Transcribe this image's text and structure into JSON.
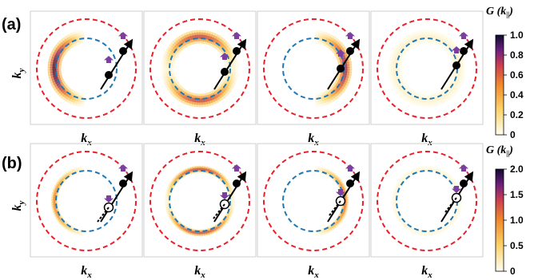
{
  "rows": [
    {
      "label": "(a)",
      "ylabel": "k",
      "ylabel_sub": "y",
      "xlabel": "k",
      "xlabel_sub": "x",
      "colorbar": {
        "title": "G (k",
        "title_sub": "||",
        "title_end": ")",
        "ticks": [
          "1.0",
          "0.8",
          "0.6",
          "0.4",
          "0.2",
          "0"
        ],
        "max": 1.0
      },
      "panels": [
        {
          "peak": 1.0,
          "spread": "left-crescent",
          "partner": "filled"
        },
        {
          "peak": 0.75,
          "spread": "top-bottom",
          "partner": "filled"
        },
        {
          "peak": 0.85,
          "spread": "right-crescent",
          "partner": "filled"
        },
        {
          "peak": 0.12,
          "spread": "faint",
          "partner": "filled"
        }
      ]
    },
    {
      "label": "(b)",
      "ylabel": "k",
      "ylabel_sub": "y",
      "xlabel": "k",
      "xlabel_sub": "x",
      "colorbar": {
        "title": "G (k",
        "title_sub": "||",
        "title_end": ")",
        "ticks": [
          "2.0",
          "1.5",
          "1.0",
          "0.5",
          "0"
        ],
        "max": 2.0
      },
      "panels": [
        {
          "peak": 0.55,
          "spread": "left-crescent",
          "partner": "hollow"
        },
        {
          "peak": 0.75,
          "spread": "top-bottom",
          "partner": "hollow"
        },
        {
          "peak": 0.6,
          "spread": "right-crescent",
          "partner": "hollow"
        },
        {
          "peak": 0.08,
          "spread": "faint",
          "partner": "hollow"
        }
      ]
    }
  ],
  "colors": {
    "outer_circle": "#e8202a",
    "inner_circle": "#1f78b4",
    "arrow": "#000000",
    "spin": "#7b3fa0"
  }
}
